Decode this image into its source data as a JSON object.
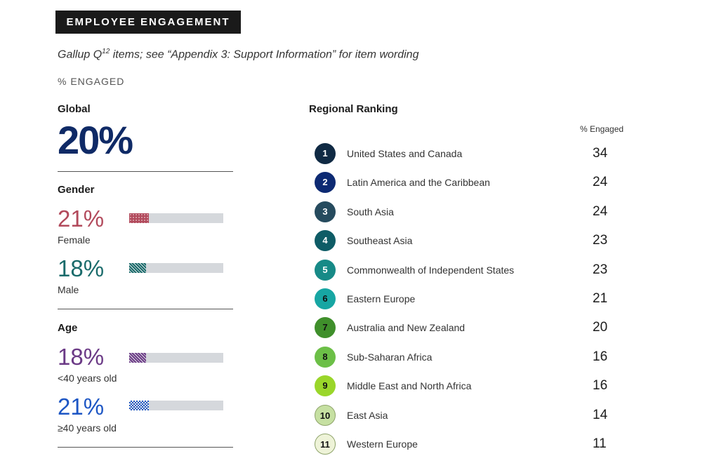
{
  "header": {
    "tag": "EMPLOYEE ENGAGEMENT"
  },
  "subtitle": {
    "pre": "Gallup Q",
    "sup": "12",
    "post": " items; see “Appendix 3: Support Information” for item wording"
  },
  "metric_label": "% ENGAGED",
  "global": {
    "label": "Global",
    "value": "20%"
  },
  "gender": {
    "label": "Gender",
    "items": [
      {
        "value": "21%",
        "label": "Female",
        "fraction": 0.21,
        "color": "#b24a5c",
        "pattern": "dots"
      },
      {
        "value": "18%",
        "label": "Male",
        "fraction": 0.18,
        "color": "#1a6b6b",
        "pattern": "stripes"
      }
    ]
  },
  "age": {
    "label": "Age",
    "items": [
      {
        "value": "18%",
        "label": "<40 years old",
        "fraction": 0.18,
        "color": "#6b3a86",
        "pattern": "stripes"
      },
      {
        "value": "21%",
        "label": "≥40 years old",
        "fraction": 0.21,
        "color": "#1d56c4",
        "pattern": "checks"
      }
    ]
  },
  "ranking": {
    "title": "Regional Ranking",
    "column_header": "% Engaged",
    "rows": [
      {
        "rank": "1",
        "region": "United States and Canada",
        "value": "34",
        "color": "#102a44",
        "text_color": "#ffffff"
      },
      {
        "rank": "2",
        "region": "Latin America and the Caribbean",
        "value": "24",
        "color": "#0d2a73",
        "text_color": "#ffffff"
      },
      {
        "rank": "3",
        "region": "South Asia",
        "value": "24",
        "color": "#264b5e",
        "text_color": "#ffffff"
      },
      {
        "rank": "4",
        "region": "Southeast Asia",
        "value": "23",
        "color": "#0e5c66",
        "text_color": "#ffffff"
      },
      {
        "rank": "5",
        "region": "Commonwealth of Independent States",
        "value": "23",
        "color": "#178a87",
        "text_color": "#ffffff"
      },
      {
        "rank": "6",
        "region": "Eastern Europe",
        "value": "21",
        "color": "#17a6a3",
        "text_color": "#111111"
      },
      {
        "rank": "7",
        "region": "Australia and New Zealand",
        "value": "20",
        "color": "#3f8f2b",
        "text_color": "#111111"
      },
      {
        "rank": "8",
        "region": "Sub-Saharan Africa",
        "value": "16",
        "color": "#6cbf47",
        "text_color": "#111111"
      },
      {
        "rank": "9",
        "region": "Middle East and North Africa",
        "value": "16",
        "color": "#9ad62a",
        "text_color": "#111111"
      },
      {
        "rank": "10",
        "region": "East Asia",
        "value": "14",
        "color": "#c6e0a2",
        "text_color": "#111111"
      },
      {
        "rank": "11",
        "region": "Western Europe",
        "value": "11",
        "color": "#eef3d8",
        "text_color": "#111111"
      }
    ]
  }
}
